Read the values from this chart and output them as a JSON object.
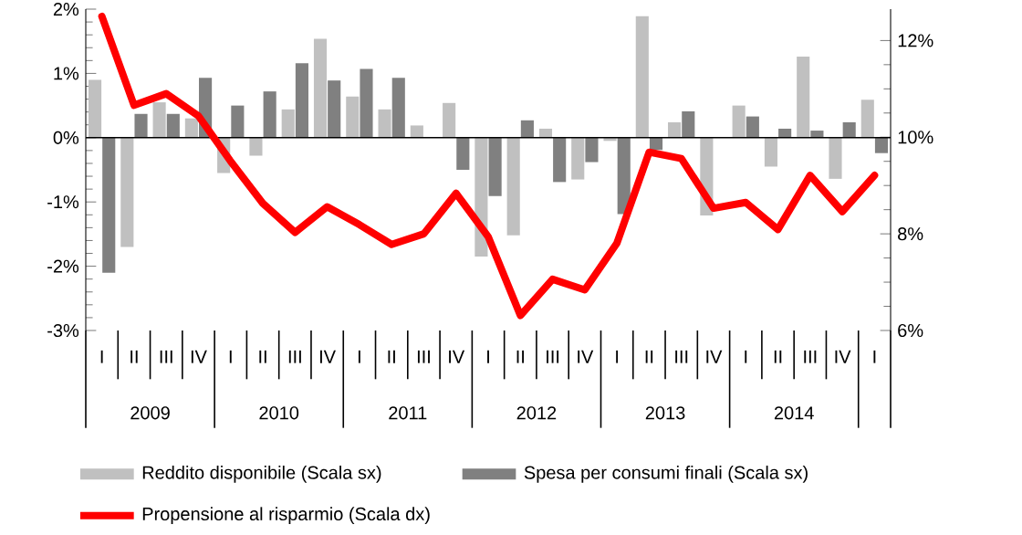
{
  "chart_data": {
    "type": "bar",
    "categories": [
      "I",
      "II",
      "III",
      "IV",
      "I",
      "II",
      "III",
      "IV",
      "I",
      "II",
      "III",
      "IV",
      "I",
      "II",
      "III",
      "IV",
      "I",
      "II",
      "III",
      "IV",
      "I",
      "II",
      "III",
      "IV",
      "I"
    ],
    "series": [
      {
        "name": "Reddito disponibile (Scala sx)",
        "color": "#c0c0c0",
        "values": [
          0.9,
          -1.7,
          0.55,
          0.3,
          -0.55,
          -0.28,
          0.44,
          1.54,
          0.64,
          0.44,
          0.19,
          0.54,
          -1.85,
          -1.52,
          0.14,
          -0.65,
          -0.05,
          1.89,
          0.24,
          -1.21,
          0.5,
          -0.45,
          1.26,
          -0.64,
          0.59
        ]
      },
      {
        "name": "Spesa per consumi finali (Scala sx)",
        "color": "#808080",
        "values": [
          -2.1,
          0.37,
          0.37,
          0.93,
          0.5,
          0.72,
          1.16,
          0.89,
          1.07,
          0.93,
          null,
          -0.5,
          -0.91,
          0.27,
          -0.69,
          -0.38,
          -1.19,
          -0.19,
          0.41,
          0.0,
          0.33,
          0.14,
          0.11,
          0.24,
          -0.24
        ]
      },
      {
        "name": "Propensione al risparmio (Scala dx)",
        "type": "line",
        "axis": "y2",
        "color": "#ff0000",
        "values": [
          12.5,
          10.66,
          10.9,
          10.44,
          9.5,
          8.63,
          8.03,
          8.56,
          8.19,
          7.78,
          8.0,
          8.84,
          7.94,
          6.31,
          7.06,
          6.84,
          7.81,
          9.69,
          9.56,
          8.53,
          8.65,
          8.09,
          9.21,
          8.46,
          9.21
        ]
      }
    ],
    "ylim": [
      -3,
      2
    ],
    "yticks": [
      {
        "value": -3,
        "label": "-3%"
      },
      {
        "value": -2,
        "label": "-2%"
      },
      {
        "value": -1,
        "label": "-1%"
      },
      {
        "value": 0,
        "label": "0%"
      },
      {
        "value": 1,
        "label": "1%"
      },
      {
        "value": 2,
        "label": "2%"
      }
    ],
    "y2lim": [
      6,
      12.65
    ],
    "y2ticks": [
      {
        "value": 6,
        "label": "6%"
      },
      {
        "value": 8,
        "label": "8%"
      },
      {
        "value": 10,
        "label": "10%"
      },
      {
        "value": 12,
        "label": "12%"
      }
    ],
    "annotations": [
      "2009",
      "2010",
      "2011",
      "2012",
      "2013",
      "2014"
    ],
    "legend": "bottom"
  }
}
